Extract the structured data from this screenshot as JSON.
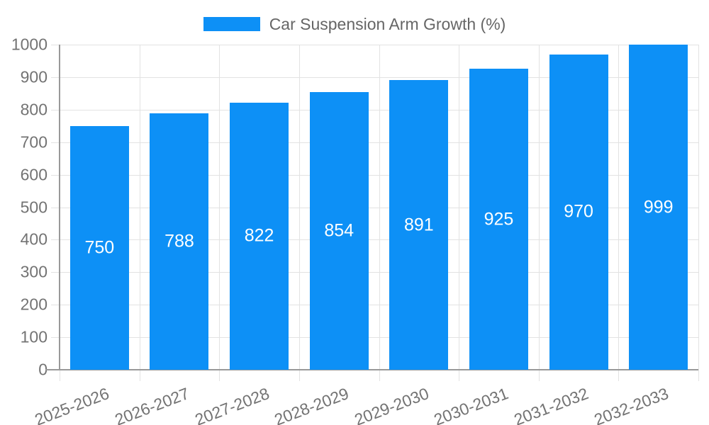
{
  "chart_data": {
    "type": "bar",
    "title": "Car Suspension Arm Growth (%)",
    "categories": [
      "2025-2026",
      "2026-2027",
      "2027-2028",
      "2028-2029",
      "2029-2030",
      "2030-2031",
      "2031-2032",
      "2032-2033"
    ],
    "values": [
      750,
      788,
      822,
      854,
      891,
      925,
      970,
      999
    ],
    "xlabel": "",
    "ylabel": "",
    "ylim": [
      0,
      1000
    ],
    "yticks": [
      0,
      100,
      200,
      300,
      400,
      500,
      600,
      700,
      800,
      900,
      1000
    ],
    "grid": true,
    "legend_position": "top-center",
    "x_tick_rotation_deg": -21,
    "colors": {
      "bar": "#0d90f6",
      "bar_label": "#ffffff",
      "grid": "#e2e2e2",
      "axis": "#999999",
      "tick_label": "#737373",
      "title": "#666666",
      "background": "#ffffff"
    }
  }
}
